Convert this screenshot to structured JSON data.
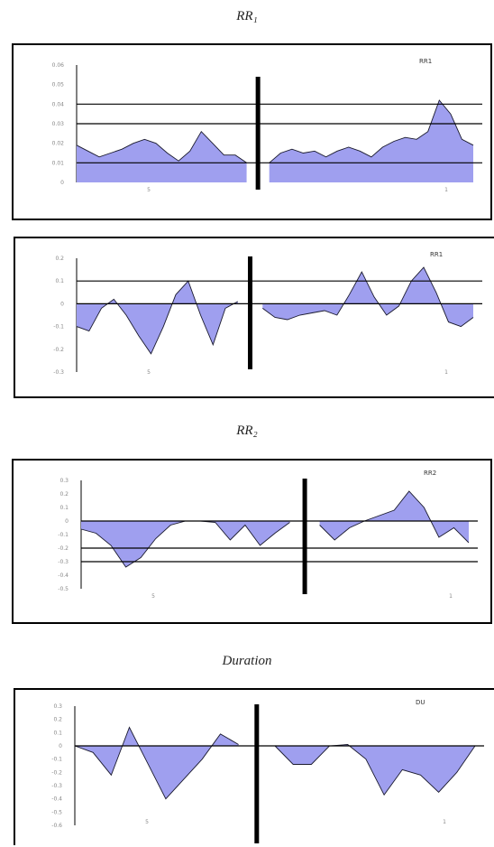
{
  "headings": [
    "RR₁",
    "RR₂",
    "Duration"
  ],
  "chart_data": [
    {
      "type": "area",
      "legend": "RR1",
      "x_title": "",
      "ylim": [
        0,
        0.06
      ],
      "y_ticks": [
        "0",
        "0.01",
        "0.02",
        "0.03",
        "0.04",
        "0.05",
        "0.06"
      ],
      "hlines": [
        0.01,
        0.03,
        0.04
      ],
      "x_ticks": [
        "5",
        "",
        "",
        "1"
      ],
      "y": [
        0.019,
        0.016,
        0.013,
        0.015,
        0.017,
        0.02,
        0.022,
        0.02,
        0.015,
        0.011,
        0.016,
        0.026,
        0.02,
        0.014,
        0.014,
        0.01,
        null,
        0.01,
        0.015,
        0.017,
        0.015,
        0.016,
        0.013,
        0.016,
        0.018,
        0.016,
        0.013,
        0.018,
        0.021,
        0.023,
        0.022,
        0.026,
        0.042,
        0.035,
        0.022,
        0.019
      ]
    },
    {
      "type": "area",
      "legend": "RR1",
      "x_title": "",
      "ylim": [
        -0.3,
        0.2
      ],
      "y_ticks": [
        "-0.3",
        "-0.2",
        "-0.1",
        "0",
        "0.1",
        "0.2"
      ],
      "hlines": [
        0.0,
        0.1
      ],
      "x_ticks": [
        "5",
        "",
        "",
        "1"
      ],
      "y": [
        -0.1,
        -0.12,
        -0.02,
        0.02,
        -0.05,
        -0.14,
        -0.22,
        -0.1,
        0.04,
        0.1,
        -0.05,
        -0.18,
        -0.02,
        0.01,
        null,
        -0.02,
        -0.06,
        -0.07,
        -0.05,
        -0.04,
        -0.03,
        -0.05,
        0.04,
        0.14,
        0.03,
        -0.05,
        -0.01,
        0.1,
        0.16,
        0.05,
        -0.08,
        -0.1,
        -0.06
      ]
    },
    {
      "type": "area",
      "legend": "RR2",
      "x_title": "",
      "ylim": [
        -0.5,
        0.3
      ],
      "y_ticks": [
        "-0.5",
        "-0.4",
        "-0.3",
        "-0.2",
        "-0.1",
        "0",
        "0.1",
        "0.2",
        "0.3"
      ],
      "hlines": [
        0.0,
        -0.2,
        -0.3
      ],
      "x_ticks": [
        "5",
        "",
        "",
        "1"
      ],
      "y": [
        -0.06,
        -0.09,
        -0.18,
        -0.34,
        -0.27,
        -0.13,
        -0.03,
        0.0,
        0.0,
        -0.01,
        -0.14,
        -0.03,
        -0.18,
        -0.09,
        -0.01,
        null,
        -0.03,
        -0.14,
        -0.05,
        0.0,
        0.04,
        0.08,
        0.22,
        0.1,
        -0.12,
        -0.05,
        -0.16
      ]
    },
    {
      "type": "area",
      "legend": "DU",
      "x_title": "",
      "ylim": [
        -0.6,
        0.3
      ],
      "y_ticks": [
        "-0.6",
        "-0.5",
        "-0.4",
        "-0.3",
        "-0.2",
        "-0.1",
        "0",
        "0.1",
        "0.2",
        "0.3"
      ],
      "hlines": [
        0.0
      ],
      "x_ticks": [
        "5",
        "",
        "",
        "1"
      ],
      "y": [
        0.0,
        -0.05,
        -0.22,
        0.14,
        -0.13,
        -0.4,
        -0.25,
        -0.1,
        0.09,
        0.01,
        null,
        0.0,
        -0.14,
        -0.14,
        0.0,
        0.01,
        -0.1,
        -0.37,
        -0.18,
        -0.22,
        -0.35,
        -0.2,
        0.0
      ]
    }
  ]
}
